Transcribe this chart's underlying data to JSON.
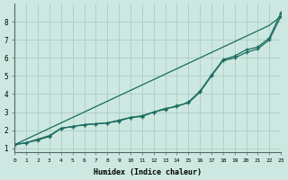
{
  "xlabel": "Humidex (Indice chaleur)",
  "bg_color": "#cce8e0",
  "grid_color": "#aac8c0",
  "line_color": "#1a6b60",
  "x_values": [
    0,
    1,
    2,
    3,
    4,
    5,
    6,
    7,
    8,
    9,
    10,
    11,
    12,
    13,
    14,
    15,
    16,
    17,
    18,
    19,
    20,
    21,
    22,
    23
  ],
  "line_straight": [
    1.2,
    1.5,
    1.8,
    2.1,
    2.4,
    2.7,
    3.0,
    3.3,
    3.6,
    3.9,
    4.2,
    4.5,
    4.8,
    5.1,
    5.4,
    5.7,
    6.0,
    6.3,
    6.6,
    6.9,
    7.2,
    7.5,
    7.8,
    8.3
  ],
  "line_curve1": [
    1.2,
    1.3,
    1.5,
    1.7,
    2.1,
    2.2,
    2.3,
    2.35,
    2.4,
    2.5,
    2.7,
    2.8,
    3.0,
    3.15,
    3.35,
    3.5,
    4.1,
    5.0,
    5.85,
    6.0,
    6.3,
    6.5,
    7.0,
    8.3
  ],
  "line_curve2": [
    1.2,
    1.3,
    1.45,
    1.65,
    2.1,
    2.2,
    2.3,
    2.35,
    2.4,
    2.55,
    2.7,
    2.75,
    3.0,
    3.2,
    3.3,
    3.55,
    4.15,
    5.05,
    5.9,
    6.1,
    6.45,
    6.6,
    7.1,
    8.5
  ],
  "xlim": [
    0,
    23
  ],
  "ylim": [
    0.8,
    9.0
  ],
  "yticks": [
    1,
    2,
    3,
    4,
    5,
    6,
    7,
    8
  ],
  "xticks": [
    0,
    1,
    2,
    3,
    4,
    5,
    6,
    7,
    8,
    9,
    10,
    11,
    12,
    13,
    14,
    15,
    16,
    17,
    18,
    19,
    20,
    21,
    22,
    23
  ]
}
